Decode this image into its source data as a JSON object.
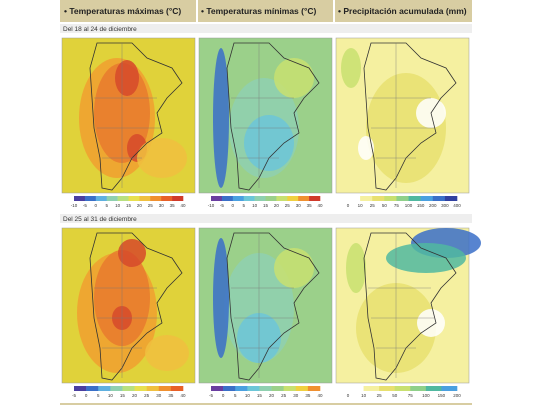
{
  "header": {
    "columns": [
      "• Temperaturas máximas (°C)",
      "• Temperaturas mínimas (°C)",
      "• Precipitación acumulada (mm)"
    ]
  },
  "rows": [
    {
      "label": "Del 18 al 24 de diciembre",
      "legends": [
        [
          "-10",
          "-5",
          "0",
          "5",
          "10",
          "15",
          "20",
          "25",
          "30",
          "35",
          "40"
        ],
        [
          "-10",
          "-5",
          "0",
          "5",
          "10",
          "15",
          "20",
          "25",
          "30",
          "35",
          "40"
        ],
        [
          "0",
          "10",
          "25",
          "50",
          "75",
          "100",
          "150",
          "200",
          "300",
          "400"
        ]
      ]
    },
    {
      "label": "Del 25 al 31 de diciembre",
      "legends": [
        [
          "-5",
          "0",
          "5",
          "10",
          "15",
          "20",
          "25",
          "30",
          "35",
          "40"
        ],
        [
          "-5",
          "0",
          "5",
          "10",
          "15",
          "20",
          "25",
          "30",
          "35",
          "40"
        ],
        [
          "0",
          "10",
          "25",
          "50",
          "75",
          "100",
          "150",
          "200"
        ]
      ]
    }
  ]
}
